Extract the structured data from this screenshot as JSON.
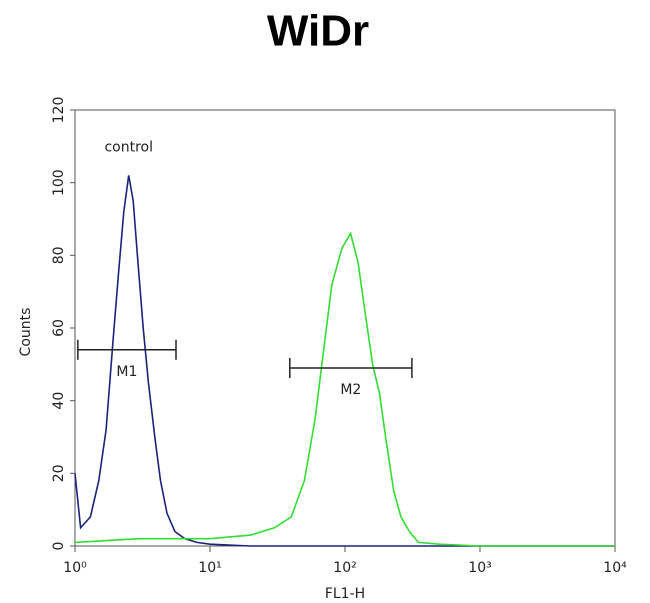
{
  "chart_data": {
    "type": "line",
    "title": "WiDr",
    "xlabel": "FL1-H",
    "ylabel": "Counts",
    "xscale": "log",
    "xlim": [
      1,
      10000
    ],
    "xticks": [
      {
        "value": 1,
        "label": "10⁰"
      },
      {
        "value": 10,
        "label": "10¹"
      },
      {
        "value": 100,
        "label": "10²"
      },
      {
        "value": 1000,
        "label": "10³"
      },
      {
        "value": 10000,
        "label": "10⁴"
      }
    ],
    "ylim": [
      0,
      120
    ],
    "yticks": [
      0,
      20,
      40,
      60,
      80,
      100,
      120
    ],
    "series": [
      {
        "name": "control",
        "color": "#1a237e",
        "x": [
          1,
          1.1,
          1.3,
          1.5,
          1.7,
          1.9,
          2.1,
          2.3,
          2.5,
          2.7,
          2.9,
          3.2,
          3.5,
          3.9,
          4.3,
          4.8,
          5.5,
          6.5,
          8,
          10,
          20,
          100,
          1000,
          10000
        ],
        "values": [
          20,
          5,
          8,
          18,
          32,
          55,
          75,
          92,
          102,
          95,
          80,
          60,
          45,
          30,
          18,
          9,
          4,
          2,
          1,
          0.5,
          0,
          0,
          0,
          0
        ]
      },
      {
        "color": "#33dd33",
        "x": [
          1,
          3,
          10,
          20,
          30,
          40,
          50,
          60,
          70,
          80,
          95,
          110,
          125,
          140,
          160,
          180,
          200,
          230,
          260,
          300,
          350,
          500,
          1000,
          10000
        ],
        "values": [
          1,
          2,
          2,
          3,
          5,
          8,
          18,
          35,
          55,
          72,
          82,
          86,
          78,
          65,
          50,
          42,
          30,
          15,
          8,
          4,
          1,
          0.5,
          0,
          0
        ]
      }
    ],
    "markers": [
      {
        "label": "M1",
        "range": [
          1.05,
          5.6
        ],
        "y": 54
      },
      {
        "label": "M2",
        "range": [
          39,
          313
        ],
        "y": 49
      }
    ]
  }
}
